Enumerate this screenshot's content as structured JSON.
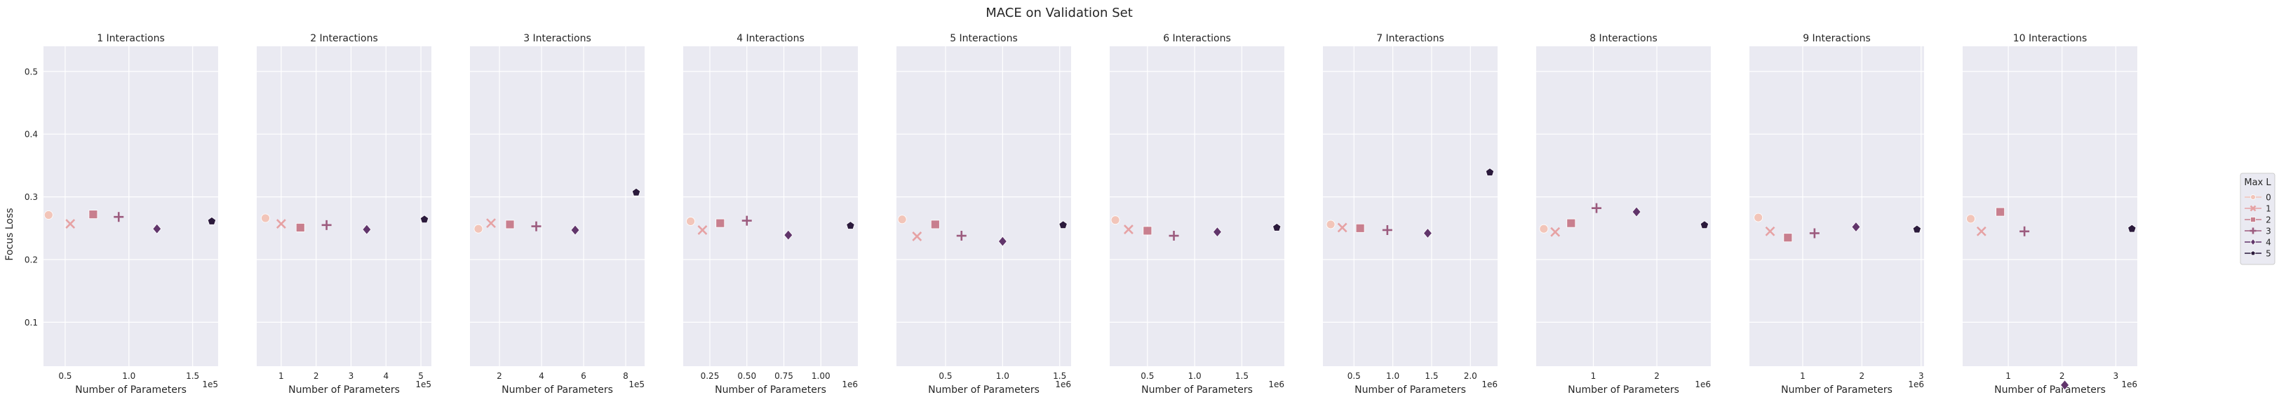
{
  "figure": {
    "suptitle": "MACE on Validation Set",
    "ylabel": "Focus Loss",
    "xlabel": "Number of Parameters"
  },
  "legend": {
    "title": "Max L",
    "placement": "center-right",
    "entries": [
      {
        "label": "0",
        "marker": "circle",
        "color": "#f2c5b9"
      },
      {
        "label": "1",
        "marker": "x",
        "color": "#e6a2a4"
      },
      {
        "label": "2",
        "marker": "square",
        "color": "#c87f8e"
      },
      {
        "label": "3",
        "marker": "plus",
        "color": "#9c5b7e"
      },
      {
        "label": "4",
        "marker": "diamond",
        "color": "#61356b"
      },
      {
        "label": "5",
        "marker": "pentagon",
        "color": "#2b1a3c"
      }
    ]
  },
  "chart_data": [
    {
      "type": "scatter",
      "title": "1 Interactions",
      "xlabel": "Number of Parameters",
      "x_multiplier": "1e5",
      "xlim": [
        0.33,
        1.7
      ],
      "xticks": [
        0.5,
        1.0,
        1.5
      ],
      "xtick_labels": [
        "0.5",
        "1.0",
        "1.5"
      ],
      "ylim": [
        0.03,
        0.54
      ],
      "yticks": [
        0.1,
        0.2,
        0.3,
        0.4,
        0.5
      ],
      "ytick_labels": [
        "0.1",
        "0.2",
        "0.3",
        "0.4",
        "0.5"
      ],
      "grid": true,
      "points": [
        {
          "max_l": "0",
          "x": 0.37,
          "y": 0.271
        },
        {
          "max_l": "1",
          "x": 0.54,
          "y": 0.257
        },
        {
          "max_l": "2",
          "x": 0.72,
          "y": 0.272
        },
        {
          "max_l": "3",
          "x": 0.92,
          "y": 0.268
        },
        {
          "max_l": "4",
          "x": 1.22,
          "y": 0.249
        },
        {
          "max_l": "5",
          "x": 1.65,
          "y": 0.261
        }
      ]
    },
    {
      "type": "scatter",
      "title": "2 Interactions",
      "xlabel": "Number of Parameters",
      "x_multiplier": "1e5",
      "xlim": [
        0.3,
        5.3
      ],
      "xticks": [
        1,
        2,
        3,
        4,
        5
      ],
      "xtick_labels": [
        "1",
        "2",
        "3",
        "4",
        "5"
      ],
      "ylim": [
        0.03,
        0.54
      ],
      "yticks": [
        0.1,
        0.2,
        0.3,
        0.4,
        0.5
      ],
      "ytick_labels": [
        "",
        "",
        "",
        "",
        ""
      ],
      "grid": true,
      "points": [
        {
          "max_l": "0",
          "x": 0.55,
          "y": 0.266
        },
        {
          "max_l": "1",
          "x": 1.0,
          "y": 0.257
        },
        {
          "max_l": "2",
          "x": 1.55,
          "y": 0.251
        },
        {
          "max_l": "3",
          "x": 2.3,
          "y": 0.255
        },
        {
          "max_l": "4",
          "x": 3.45,
          "y": 0.248
        },
        {
          "max_l": "5",
          "x": 5.1,
          "y": 0.264
        }
      ]
    },
    {
      "type": "scatter",
      "title": "3 Interactions",
      "xlabel": "Number of Parameters",
      "x_multiplier": "1e5",
      "xlim": [
        0.6,
        8.9
      ],
      "xticks": [
        2,
        4,
        6,
        8
      ],
      "xtick_labels": [
        "2",
        "4",
        "6",
        "8"
      ],
      "ylim": [
        0.03,
        0.54
      ],
      "yticks": [
        0.1,
        0.2,
        0.3,
        0.4,
        0.5
      ],
      "ytick_labels": [
        "",
        "",
        "",
        "",
        ""
      ],
      "grid": true,
      "points": [
        {
          "max_l": "0",
          "x": 1.0,
          "y": 0.249
        },
        {
          "max_l": "1",
          "x": 1.6,
          "y": 0.258
        },
        {
          "max_l": "2",
          "x": 2.5,
          "y": 0.256
        },
        {
          "max_l": "3",
          "x": 3.75,
          "y": 0.253
        },
        {
          "max_l": "4",
          "x": 5.6,
          "y": 0.247
        },
        {
          "max_l": "5",
          "x": 8.5,
          "y": 0.307
        }
      ]
    },
    {
      "type": "scatter",
      "title": "4 Interactions",
      "xlabel": "Number of Parameters",
      "x_multiplier": "1e6",
      "xlim": [
        0.07,
        1.25
      ],
      "xticks": [
        0.25,
        0.5,
        0.75,
        1.0
      ],
      "xtick_labels": [
        "0.25",
        "0.50",
        "0.75",
        "1.00"
      ],
      "ylim": [
        0.03,
        0.54
      ],
      "yticks": [
        0.1,
        0.2,
        0.3,
        0.4,
        0.5
      ],
      "ytick_labels": [
        "",
        "",
        "",
        "",
        ""
      ],
      "grid": true,
      "points": [
        {
          "max_l": "0",
          "x": 0.12,
          "y": 0.261
        },
        {
          "max_l": "1",
          "x": 0.2,
          "y": 0.247
        },
        {
          "max_l": "2",
          "x": 0.32,
          "y": 0.258
        },
        {
          "max_l": "3",
          "x": 0.5,
          "y": 0.262
        },
        {
          "max_l": "4",
          "x": 0.78,
          "y": 0.239
        },
        {
          "max_l": "5",
          "x": 1.2,
          "y": 0.254
        }
      ]
    },
    {
      "type": "scatter",
      "title": "5 Interactions",
      "xlabel": "Number of Parameters",
      "x_multiplier": "1e6",
      "xlim": [
        0.07,
        1.6
      ],
      "xticks": [
        0.5,
        1.0,
        1.5
      ],
      "xtick_labels": [
        "0.5",
        "1.0",
        "1.5"
      ],
      "ylim": [
        0.03,
        0.54
      ],
      "yticks": [
        0.1,
        0.2,
        0.3,
        0.4,
        0.5
      ],
      "ytick_labels": [
        "",
        "",
        "",
        "",
        ""
      ],
      "grid": true,
      "points": [
        {
          "max_l": "0",
          "x": 0.12,
          "y": 0.264
        },
        {
          "max_l": "1",
          "x": 0.25,
          "y": 0.237
        },
        {
          "max_l": "2",
          "x": 0.41,
          "y": 0.256
        },
        {
          "max_l": "3",
          "x": 0.64,
          "y": 0.238
        },
        {
          "max_l": "4",
          "x": 1.0,
          "y": 0.229
        },
        {
          "max_l": "5",
          "x": 1.53,
          "y": 0.255
        }
      ]
    },
    {
      "type": "scatter",
      "title": "6 Interactions",
      "xlabel": "Number of Parameters",
      "x_multiplier": "1e6",
      "xlim": [
        0.1,
        1.95
      ],
      "xticks": [
        0.5,
        1.0,
        1.5
      ],
      "xtick_labels": [
        "0.5",
        "1.0",
        "1.5"
      ],
      "ylim": [
        0.03,
        0.54
      ],
      "yticks": [
        0.1,
        0.2,
        0.3,
        0.4,
        0.5
      ],
      "ytick_labels": [
        "",
        "",
        "",
        "",
        ""
      ],
      "grid": true,
      "points": [
        {
          "max_l": "0",
          "x": 0.16,
          "y": 0.263
        },
        {
          "max_l": "1",
          "x": 0.3,
          "y": 0.248
        },
        {
          "max_l": "2",
          "x": 0.5,
          "y": 0.246
        },
        {
          "max_l": "3",
          "x": 0.78,
          "y": 0.238
        },
        {
          "max_l": "4",
          "x": 1.24,
          "y": 0.244
        },
        {
          "max_l": "5",
          "x": 1.87,
          "y": 0.251
        }
      ]
    },
    {
      "type": "scatter",
      "title": "7 Interactions",
      "xlabel": "Number of Parameters",
      "x_multiplier": "1e6",
      "xlim": [
        0.1,
        2.35
      ],
      "xticks": [
        0.5,
        1.0,
        1.5,
        2.0
      ],
      "xtick_labels": [
        "0.5",
        "1.0",
        "1.5",
        "2.0"
      ],
      "ylim": [
        0.03,
        0.54
      ],
      "yticks": [
        0.1,
        0.2,
        0.3,
        0.4,
        0.5
      ],
      "ytick_labels": [
        "",
        "",
        "",
        "",
        ""
      ],
      "grid": true,
      "points": [
        {
          "max_l": "0",
          "x": 0.2,
          "y": 0.256
        },
        {
          "max_l": "1",
          "x": 0.35,
          "y": 0.251
        },
        {
          "max_l": "2",
          "x": 0.58,
          "y": 0.25
        },
        {
          "max_l": "3",
          "x": 0.93,
          "y": 0.247
        },
        {
          "max_l": "4",
          "x": 1.45,
          "y": 0.242
        },
        {
          "max_l": "5",
          "x": 2.25,
          "y": 0.339
        }
      ]
    },
    {
      "type": "scatter",
      "title": "8 Interactions",
      "xlabel": "Number of Parameters",
      "x_multiplier": "1e6",
      "xlim": [
        0.1,
        2.85
      ],
      "xticks": [
        1,
        2
      ],
      "xtick_labels": [
        "1",
        "2"
      ],
      "ylim": [
        0.03,
        0.54
      ],
      "yticks": [
        0.1,
        0.2,
        0.3,
        0.4,
        0.5
      ],
      "ytick_labels": [
        "",
        "",
        "",
        "",
        ""
      ],
      "grid": true,
      "points": [
        {
          "max_l": "0",
          "x": 0.22,
          "y": 0.249
        },
        {
          "max_l": "1",
          "x": 0.4,
          "y": 0.244
        },
        {
          "max_l": "2",
          "x": 0.65,
          "y": 0.258
        },
        {
          "max_l": "3",
          "x": 1.05,
          "y": 0.282
        },
        {
          "max_l": "4",
          "x": 1.68,
          "y": 0.276
        },
        {
          "max_l": "5",
          "x": 2.75,
          "y": 0.255
        }
      ]
    },
    {
      "type": "scatter",
      "title": "9 Interactions",
      "xlabel": "Number of Parameters",
      "x_multiplier": "1e6",
      "xlim": [
        0.1,
        3.05
      ],
      "xticks": [
        1,
        2,
        3
      ],
      "xtick_labels": [
        "1",
        "2",
        "3"
      ],
      "ylim": [
        0.03,
        0.54
      ],
      "yticks": [
        0.1,
        0.2,
        0.3,
        0.4,
        0.5
      ],
      "ytick_labels": [
        "",
        "",
        "",
        "",
        ""
      ],
      "grid": true,
      "points": [
        {
          "max_l": "0",
          "x": 0.25,
          "y": 0.267
        },
        {
          "max_l": "1",
          "x": 0.45,
          "y": 0.245
        },
        {
          "max_l": "2",
          "x": 0.75,
          "y": 0.235
        },
        {
          "max_l": "3",
          "x": 1.2,
          "y": 0.242
        },
        {
          "max_l": "4",
          "x": 1.9,
          "y": 0.252
        },
        {
          "max_l": "5",
          "x": 2.93,
          "y": 0.248
        }
      ]
    },
    {
      "type": "scatter",
      "title": "10 Interactions",
      "xlabel": "Number of Parameters",
      "x_multiplier": "1e6",
      "xlim": [
        0.15,
        3.4
      ],
      "xticks": [
        1,
        2,
        3
      ],
      "xtick_labels": [
        "1",
        "2",
        "3"
      ],
      "ylim": [
        0.03,
        0.54
      ],
      "yticks": [
        0.1,
        0.2,
        0.3,
        0.4,
        0.5
      ],
      "ytick_labels": [
        "",
        "",
        "",
        "",
        ""
      ],
      "grid": true,
      "points": [
        {
          "max_l": "0",
          "x": 0.3,
          "y": 0.265
        },
        {
          "max_l": "1",
          "x": 0.5,
          "y": 0.245
        },
        {
          "max_l": "2",
          "x": 0.85,
          "y": 0.276
        },
        {
          "max_l": "3",
          "x": 1.3,
          "y": 0.245
        },
        {
          "max_l": "4",
          "x": 2.05,
          "y": 0.0
        },
        {
          "max_l": "5",
          "x": 3.3,
          "y": 0.249
        }
      ]
    }
  ]
}
